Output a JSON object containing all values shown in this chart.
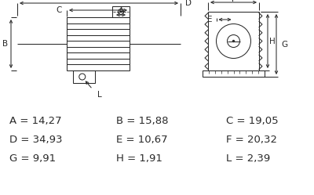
{
  "bg_color": "#ffffff",
  "line_color": "#2a2a2a",
  "dim_rows": [
    [
      [
        "A",
        "14,27"
      ],
      [
        "B",
        "15,88"
      ],
      [
        "C",
        "19,05"
      ]
    ],
    [
      [
        "D",
        "34,93"
      ],
      [
        "E",
        "10,67"
      ],
      [
        "F",
        "20,32"
      ]
    ],
    [
      [
        "G",
        "9,91"
      ],
      [
        "H",
        "1,91"
      ],
      [
        "L",
        "2,39"
      ]
    ]
  ],
  "text_fontsize": 9.5
}
